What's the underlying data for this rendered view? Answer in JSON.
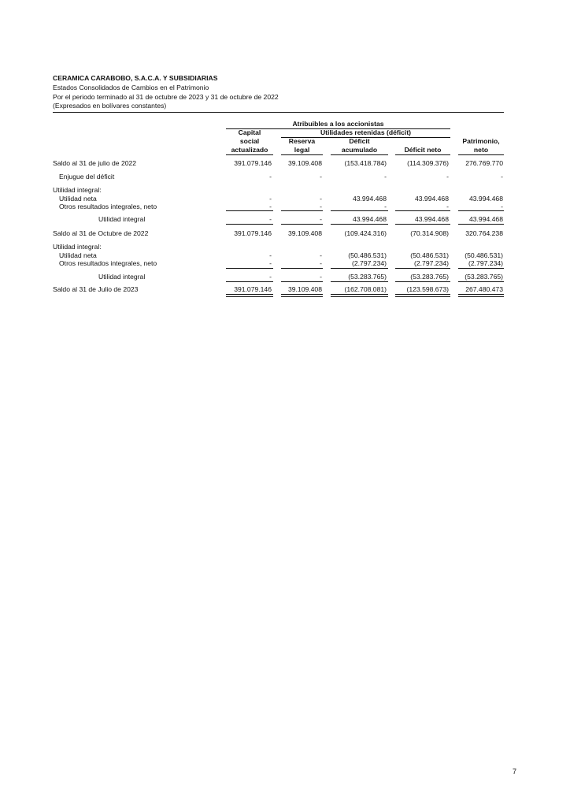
{
  "header": {
    "company": "CERAMICA CARABOBO, S.A.C.A. Y SUBSIDIARIAS",
    "statement": "Estados Consolidados de Cambios en el Patrimonio",
    "period": "Por el periodo terminado al 31 de octubre de 2023 y 31 de octubre de 2022",
    "currency_note": "(Expresados en bolívares constantes)"
  },
  "table": {
    "group_header": "Atribuibles a los accionistas",
    "subgroup_header": "Utilidades retenidas (déficit)",
    "columns": [
      {
        "line1": "Capital",
        "line2": "social",
        "line3": "actualizado"
      },
      {
        "line1": "",
        "line2": "Reserva",
        "line3": "legal"
      },
      {
        "line1": "",
        "line2": "Déficit",
        "line3": "acumulado"
      },
      {
        "line1": "",
        "line2": "",
        "line3": "Déficit neto"
      },
      {
        "line1": "",
        "line2": "Patrimonio,",
        "line3": "neto"
      }
    ],
    "rows": [
      {
        "label": "Saldo al 31 de julio de 2022",
        "values": [
          "391.079.146",
          "39.109.408",
          "(153.418.784)",
          "(114.309.376)",
          "276.769.770"
        ]
      },
      {
        "label": "Enjugue del déficit",
        "values": [
          "-",
          "-",
          "-",
          "-",
          "-"
        ]
      },
      {
        "label": "Utilidad integral:",
        "values": [
          "",
          "",
          "",
          "",
          ""
        ]
      },
      {
        "label": "Utilidad neta",
        "values": [
          "-",
          "-",
          "43.994.468",
          "43.994.468",
          "43.994.468"
        ]
      },
      {
        "label": "Otros resultados integrales, neto",
        "values": [
          "-",
          "-",
          "-",
          "-",
          "-"
        ]
      },
      {
        "label": "Utilidad integral",
        "values": [
          "-",
          "-",
          "43.994.468",
          "43.994.468",
          "43.994.468"
        ]
      },
      {
        "label": "Saldo al 31 de Octubre de 2022",
        "values": [
          "391.079.146",
          "39.109.408",
          "(109.424.316)",
          "(70.314.908)",
          "320.764.238"
        ]
      },
      {
        "label": "Utilidad integral:",
        "values": [
          "",
          "",
          "",
          "",
          ""
        ]
      },
      {
        "label": "Utilidad neta",
        "values": [
          "-",
          "-",
          "(50.486.531)",
          "(50.486.531)",
          "(50.486.531)"
        ]
      },
      {
        "label": "Otros resultados integrales, neto",
        "values": [
          "-",
          "-",
          "(2.797.234)",
          "(2.797.234)",
          "(2.797.234)"
        ]
      },
      {
        "label": "Utilidad integral",
        "values": [
          "-",
          "-",
          "(53.283.765)",
          "(53.283.765)",
          "(53.283.765)"
        ]
      },
      {
        "label": "Saldo al 31 de Julio de 2023",
        "values": [
          "391.079.146",
          "39.109.408",
          "(162.708.081)",
          "(123.598.673)",
          "267.480.473"
        ]
      }
    ]
  },
  "footer": {
    "page_number": "7"
  }
}
